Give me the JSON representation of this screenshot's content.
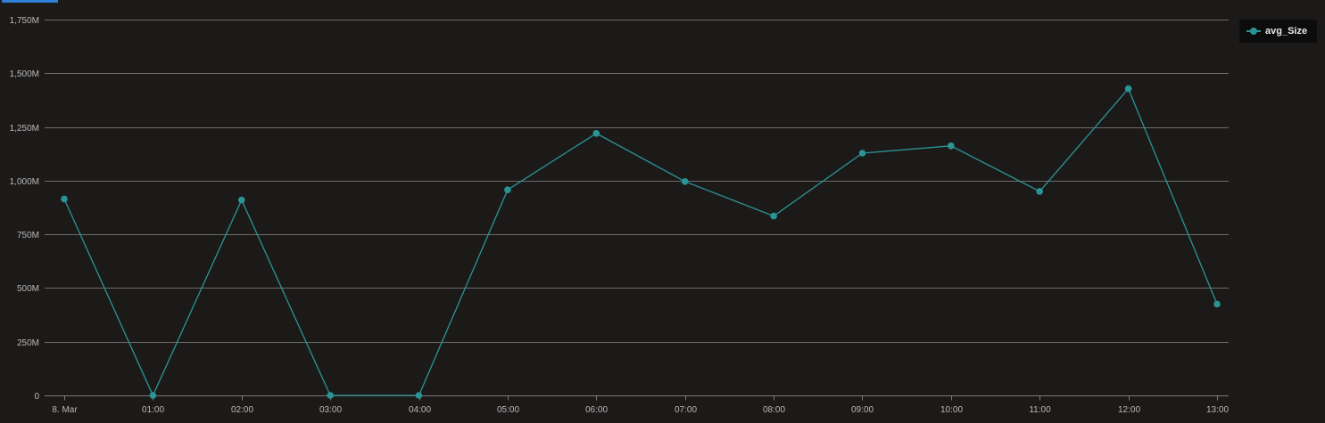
{
  "chart_data": {
    "type": "line",
    "title": "",
    "xlabel": "",
    "ylabel": "",
    "categories": [
      "8. Mar",
      "01:00",
      "02:00",
      "03:00",
      "04:00",
      "05:00",
      "06:00",
      "07:00",
      "08:00",
      "09:00",
      "10:00",
      "11:00",
      "12:00",
      "13:00"
    ],
    "series": [
      {
        "name": "avg_Size",
        "color": "#2a9494",
        "values": [
          915000000,
          0,
          910000000,
          0,
          0,
          957000000,
          1220000000,
          996000000,
          835000000,
          1128000000,
          1162000000,
          950000000,
          1428000000,
          425000000
        ]
      }
    ],
    "ylim": [
      0,
      1750000000
    ],
    "yticks": [
      0,
      250000000,
      500000000,
      750000000,
      1000000000,
      1250000000,
      1500000000,
      1750000000
    ],
    "ytick_labels": [
      "0",
      "250M",
      "500M",
      "750M",
      "1,000M",
      "1,250M",
      "1,500M",
      "1,750M"
    ],
    "grid": true,
    "legend_position": "top-right"
  },
  "colors": {
    "background": "#1c1a19",
    "grid": "#6b6b6b",
    "tick_text": "#b9b9b9",
    "legend_background": "#0d0c0c",
    "legend_text": "#e8e8e8",
    "tab_indicator": "#2f7fd6"
  }
}
